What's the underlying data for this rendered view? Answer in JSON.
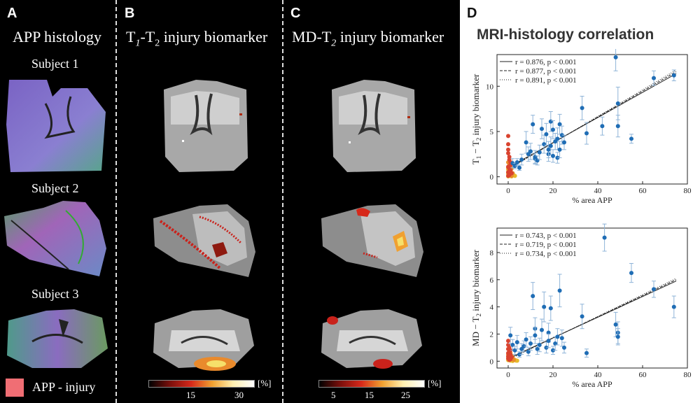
{
  "panels": {
    "a": {
      "letter": "A",
      "title": "APP histology",
      "subjects": [
        "Subject 1",
        "Subject 2",
        "Subject 3"
      ],
      "legend_label": "APP - injury",
      "legend_color": "#f06e74"
    },
    "b": {
      "letter": "B",
      "title_pre": "T",
      "title_sub1": "1",
      "title_mid": "-T",
      "title_sub2": "2",
      "title_post": " injury biomarker",
      "cbar_ticks": [
        "15",
        "30"
      ],
      "cbar_unit": "[%]"
    },
    "c": {
      "letter": "C",
      "title_pre": "MD-T",
      "title_sub": "2",
      "title_post": " injury biomarker",
      "cbar_ticks": [
        "5",
        "15",
        "25"
      ],
      "cbar_unit": "[%]"
    },
    "d": {
      "letter": "D",
      "title": "MRI-histology correlation"
    }
  },
  "chart_data": [
    {
      "type": "scatter",
      "xlabel": "% area APP",
      "ylabel_pre": "T",
      "ylabel_sub1": "1",
      "ylabel_mid": " − T",
      "ylabel_sub2": "2",
      "ylabel_post": " injury biomarker",
      "xlim": [
        -5,
        80
      ],
      "ylim": [
        -0.8,
        13.5
      ],
      "xticks": [
        0,
        20,
        40,
        60,
        80
      ],
      "yticks": [
        0,
        5,
        10
      ],
      "legend": [
        "r = 0.876, p < 0.001",
        "r = 0.877, p < 0.001",
        "r = 0.891, p < 0.001"
      ],
      "fits": [
        {
          "style": "solid",
          "x": [
            0,
            75
          ],
          "y": [
            1.0,
            11.4
          ]
        },
        {
          "style": "dashed",
          "x": [
            0,
            75
          ],
          "y": [
            0.9,
            11.6
          ]
        },
        {
          "style": "dotted",
          "x": [
            0,
            75
          ],
          "y": [
            0.8,
            11.8
          ]
        }
      ],
      "colors": {
        "blue": "#1f6db5",
        "red": "#d9432f",
        "orange": "#e98a2c",
        "yellow": "#e7b92a",
        "errbar": "#8fb4d8"
      },
      "blue_points": [
        [
          2,
          1.5
        ],
        [
          3,
          1.2
        ],
        [
          4,
          1.6
        ],
        [
          5,
          1.0
        ],
        [
          6,
          1.9
        ],
        [
          8,
          3.8
        ],
        [
          9,
          2.5
        ],
        [
          10,
          2.8
        ],
        [
          11,
          5.8
        ],
        [
          12,
          2.0
        ],
        [
          12,
          2.2
        ],
        [
          13,
          1.8
        ],
        [
          14,
          2.7
        ],
        [
          15,
          5.3
        ],
        [
          16,
          3.6
        ],
        [
          17,
          4.7
        ],
        [
          18,
          2.5
        ],
        [
          18,
          3.0
        ],
        [
          19,
          3.4
        ],
        [
          19,
          6.1
        ],
        [
          20,
          2.3
        ],
        [
          20,
          5.2
        ],
        [
          21,
          3.9
        ],
        [
          22,
          4.2
        ],
        [
          22,
          2.1
        ],
        [
          23,
          5.8
        ],
        [
          23,
          3.0
        ],
        [
          24,
          4.6
        ],
        [
          25,
          3.8
        ],
        [
          33,
          7.6
        ],
        [
          35,
          4.8
        ],
        [
          42,
          5.6
        ],
        [
          48,
          13.2
        ],
        [
          49,
          8.1
        ],
        [
          49,
          5.6
        ],
        [
          55,
          4.2
        ],
        [
          65,
          10.9
        ],
        [
          74,
          11.2
        ]
      ],
      "blue_err": [
        0.5,
        0.3,
        0.4,
        0.3,
        0.6,
        1.2,
        0.8,
        0.9,
        1.0,
        0.6,
        0.7,
        0.5,
        0.8,
        1.1,
        1.0,
        1.2,
        0.8,
        0.9,
        1.0,
        1.1,
        0.7,
        1.0,
        0.9,
        1.2,
        0.6,
        1.1,
        0.9,
        1.0,
        0.8,
        1.3,
        1.2,
        1.0,
        1.5,
        1.8,
        1.2,
        0.5,
        0.8,
        0.6
      ],
      "red_points": [
        [
          0,
          4.5
        ],
        [
          0,
          3.6
        ],
        [
          0,
          3.0
        ],
        [
          0,
          2.6
        ],
        [
          0.5,
          2.2
        ],
        [
          0.5,
          1.9
        ],
        [
          1,
          1.6
        ],
        [
          1,
          1.3
        ],
        [
          0,
          1.1
        ],
        [
          0.5,
          0.9
        ],
        [
          1,
          0.7
        ],
        [
          0,
          0.5
        ],
        [
          1.5,
          0.4
        ],
        [
          0.5,
          0.2
        ],
        [
          0,
          0.1
        ]
      ],
      "orange_points": [
        [
          0,
          1.6
        ],
        [
          0.5,
          1.4
        ],
        [
          1,
          1.2
        ],
        [
          0,
          1.0
        ],
        [
          1.5,
          0.9
        ],
        [
          0.5,
          0.7
        ],
        [
          1,
          0.6
        ],
        [
          0,
          0.5
        ],
        [
          2,
          0.4
        ],
        [
          1,
          0.3
        ],
        [
          0.5,
          0.15
        ],
        [
          1.5,
          0.1
        ]
      ],
      "yellow_points": [
        [
          0,
          0.8
        ],
        [
          0.5,
          0.6
        ],
        [
          1,
          0.5
        ],
        [
          1.5,
          0.4
        ],
        [
          0,
          0.3
        ],
        [
          2,
          0.3
        ],
        [
          1,
          0.2
        ],
        [
          2.5,
          0.15
        ],
        [
          0.5,
          0.1
        ],
        [
          1.5,
          0.05
        ],
        [
          3,
          0.1
        ],
        [
          0,
          0.05
        ]
      ]
    },
    {
      "type": "scatter",
      "xlabel": "% area APP",
      "ylabel_pre": "MD − T",
      "ylabel_sub": "2",
      "ylabel_post": " injury biomarker",
      "xlim": [
        -5,
        80
      ],
      "ylim": [
        -0.5,
        9.8
      ],
      "xticks": [
        0,
        20,
        40,
        60,
        80
      ],
      "yticks": [
        0,
        2,
        4,
        6,
        8
      ],
      "legend": [
        "r = 0.743, p < 0.001",
        "r = 0.719, p < 0.001",
        "r = 0.734, p < 0.001"
      ],
      "fits": [
        {
          "style": "solid",
          "x": [
            0,
            75
          ],
          "y": [
            0.2,
            5.9
          ]
        },
        {
          "style": "dashed",
          "x": [
            0,
            75
          ],
          "y": [
            0.15,
            6.0
          ]
        },
        {
          "style": "dotted",
          "x": [
            0,
            75
          ],
          "y": [
            0.1,
            6.1
          ]
        }
      ],
      "colors": {
        "blue": "#1f6db5",
        "red": "#d9432f",
        "orange": "#e98a2c",
        "yellow": "#e7b92a",
        "errbar": "#8fb4d8"
      },
      "blue_points": [
        [
          1,
          1.9
        ],
        [
          2,
          1.2
        ],
        [
          3,
          0.8
        ],
        [
          4,
          1.4
        ],
        [
          5,
          0.5
        ],
        [
          6,
          0.9
        ],
        [
          7,
          1.1
        ],
        [
          8,
          1.6
        ],
        [
          9,
          0.7
        ],
        [
          10,
          1.3
        ],
        [
          11,
          4.8
        ],
        [
          12,
          2.4
        ],
        [
          12,
          1.9
        ],
        [
          13,
          0.9
        ],
        [
          14,
          1.2
        ],
        [
          15,
          2.3
        ],
        [
          16,
          4.0
        ],
        [
          17,
          1.0
        ],
        [
          18,
          2.1
        ],
        [
          18,
          1.5
        ],
        [
          19,
          3.9
        ],
        [
          20,
          0.8
        ],
        [
          21,
          1.3
        ],
        [
          22,
          1.8
        ],
        [
          23,
          5.2
        ],
        [
          24,
          1.7
        ],
        [
          25,
          1.0
        ],
        [
          33,
          3.3
        ],
        [
          35,
          0.6
        ],
        [
          43,
          9.1
        ],
        [
          48,
          2.7
        ],
        [
          49,
          2.1
        ],
        [
          49,
          1.8
        ],
        [
          55,
          6.5
        ],
        [
          65,
          5.3
        ],
        [
          74,
          4.0
        ]
      ],
      "blue_err": [
        0.6,
        0.4,
        0.3,
        0.5,
        0.2,
        0.4,
        0.4,
        0.5,
        0.3,
        0.5,
        1.0,
        0.8,
        0.6,
        0.4,
        0.5,
        0.8,
        1.1,
        0.4,
        0.7,
        0.5,
        0.9,
        0.3,
        0.5,
        0.6,
        1.2,
        0.6,
        0.4,
        0.9,
        0.3,
        1.0,
        0.9,
        0.8,
        0.6,
        0.7,
        0.6,
        0.8
      ],
      "red_points": [
        [
          0,
          1.5
        ],
        [
          0,
          1.2
        ],
        [
          0.5,
          1.0
        ],
        [
          0,
          0.9
        ],
        [
          1,
          0.8
        ],
        [
          0.5,
          0.7
        ],
        [
          0,
          0.6
        ],
        [
          1,
          0.5
        ],
        [
          0.5,
          0.4
        ],
        [
          0,
          0.35
        ],
        [
          1.5,
          0.3
        ],
        [
          0,
          0.2
        ],
        [
          1,
          0.15
        ],
        [
          0.5,
          0.1
        ]
      ],
      "orange_points": [
        [
          0,
          0.9
        ],
        [
          0.5,
          0.7
        ],
        [
          1,
          0.6
        ],
        [
          0,
          0.5
        ],
        [
          1.5,
          0.4
        ],
        [
          0.5,
          0.35
        ],
        [
          1,
          0.3
        ],
        [
          2,
          0.25
        ],
        [
          0,
          0.2
        ],
        [
          1.5,
          0.15
        ],
        [
          0.5,
          0.1
        ],
        [
          2.5,
          0.1
        ]
      ],
      "yellow_points": [
        [
          0,
          0.35
        ],
        [
          0.5,
          0.3
        ],
        [
          1,
          0.25
        ],
        [
          1.5,
          0.2
        ],
        [
          2,
          0.15
        ],
        [
          2.5,
          0.12
        ],
        [
          3,
          0.1
        ],
        [
          0,
          0.08
        ],
        [
          1,
          0.05
        ],
        [
          3.5,
          0.05
        ],
        [
          4,
          0.04
        ],
        [
          2,
          0.02
        ]
      ]
    }
  ]
}
